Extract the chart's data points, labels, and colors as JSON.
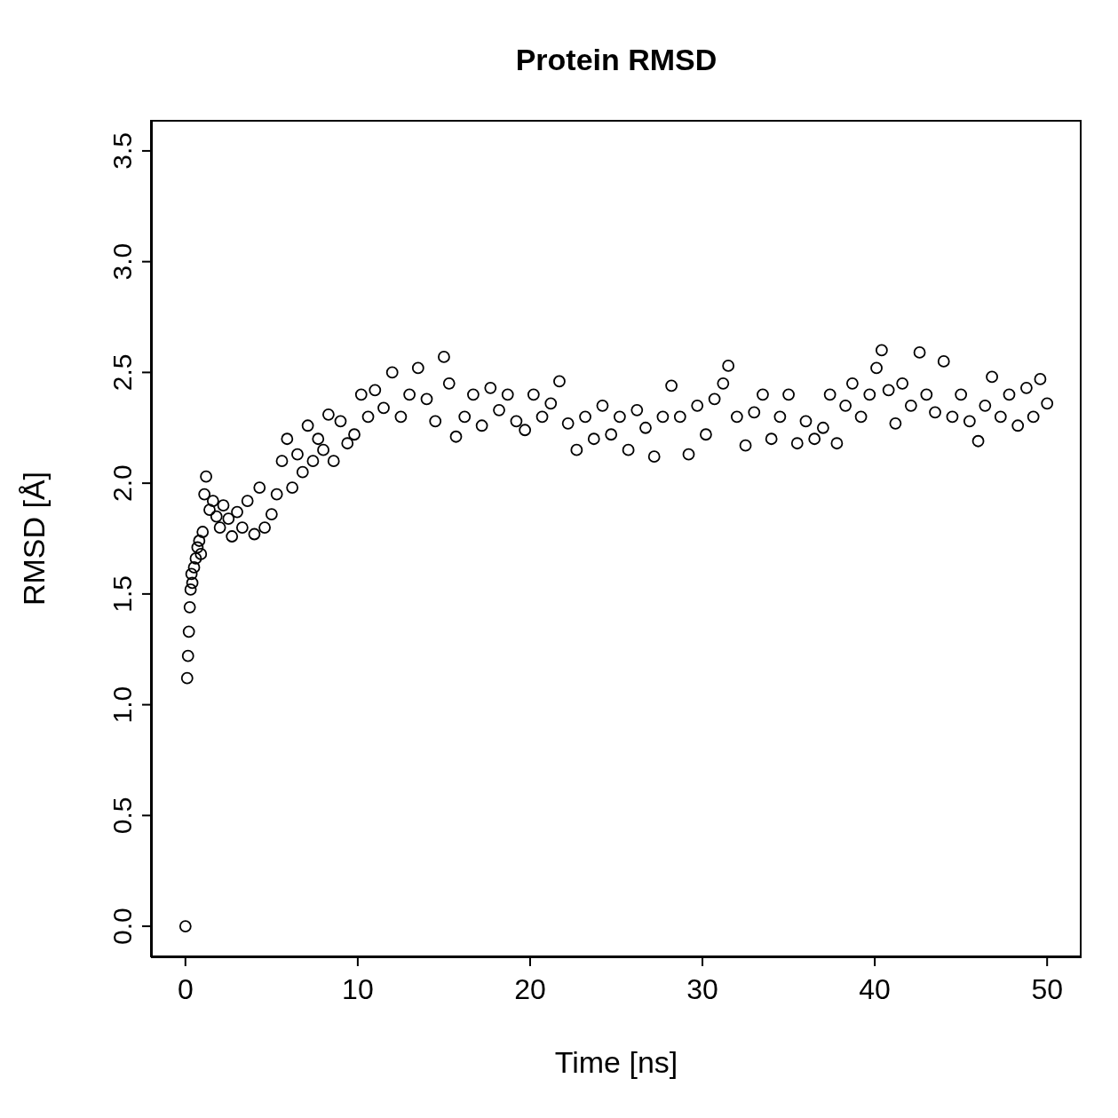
{
  "chart_data": {
    "type": "scatter",
    "title": "Protein RMSD",
    "xlabel": "Time [ns]",
    "ylabel": "RMSD [Å]",
    "marker": "circle",
    "grid": false,
    "legend": false,
    "xlim": [
      -2,
      52
    ],
    "ylim": [
      -0.14,
      3.64
    ],
    "xticks": [
      0,
      10,
      20,
      30,
      40,
      50
    ],
    "yticks": [
      {
        "value": 0,
        "label": "0.0"
      },
      0.5,
      {
        "value": 1,
        "label": "1.0"
      },
      1.5,
      {
        "value": 2,
        "label": "2.0"
      },
      2.5,
      {
        "value": 3,
        "label": "3.0"
      },
      3.5
    ],
    "series": [
      {
        "color": "#000000",
        "x": [
          0,
          0.1,
          0.15,
          0.2,
          0.25,
          0.3,
          0.35,
          0.4,
          0.5,
          0.6,
          0.7,
          0.8,
          0.9,
          1.0,
          1.1,
          1.2,
          1.4,
          1.6,
          1.8,
          2.0,
          2.2,
          2.5,
          2.7,
          3.0,
          3.3,
          3.6,
          4.0,
          4.3,
          4.6,
          5.0,
          5.3,
          5.6,
          5.9,
          6.2,
          6.5,
          6.8,
          7.1,
          7.4,
          7.7,
          8.0,
          8.3,
          8.6,
          9.0,
          9.4,
          9.8,
          10.2,
          10.6,
          11.0,
          11.5,
          12.0,
          12.5,
          13.0,
          13.5,
          14.0,
          14.5,
          15.0,
          15.3,
          15.7,
          16.2,
          16.7,
          17.2,
          17.7,
          18.2,
          18.7,
          19.2,
          19.7,
          20.2,
          20.7,
          21.2,
          21.7,
          22.2,
          22.7,
          23.2,
          23.7,
          24.2,
          24.7,
          25.2,
          25.7,
          26.2,
          26.7,
          27.2,
          27.7,
          28.2,
          28.7,
          29.2,
          29.7,
          30.2,
          30.7,
          31.2,
          31.5,
          32.0,
          32.5,
          33.0,
          33.5,
          34.0,
          34.5,
          35.0,
          35.5,
          36.0,
          36.5,
          37.0,
          37.4,
          37.8,
          38.3,
          38.7,
          39.2,
          39.7,
          40.1,
          40.4,
          40.8,
          41.2,
          41.6,
          42.1,
          42.6,
          43.0,
          43.5,
          44.0,
          44.5,
          45.0,
          45.5,
          46.0,
          46.4,
          46.8,
          47.3,
          47.8,
          48.3,
          48.8,
          49.2,
          49.6,
          50.0
        ],
        "values": [
          0,
          1.12,
          1.22,
          1.33,
          1.44,
          1.52,
          1.59,
          1.55,
          1.62,
          1.66,
          1.71,
          1.74,
          1.68,
          1.78,
          1.95,
          2.03,
          1.88,
          1.92,
          1.85,
          1.8,
          1.9,
          1.84,
          1.76,
          1.87,
          1.8,
          1.92,
          1.77,
          1.98,
          1.8,
          1.86,
          1.95,
          2.1,
          2.2,
          1.98,
          2.13,
          2.05,
          2.26,
          2.1,
          2.2,
          2.15,
          2.31,
          2.1,
          2.28,
          2.18,
          2.22,
          2.4,
          2.3,
          2.42,
          2.34,
          2.5,
          2.3,
          2.4,
          2.52,
          2.38,
          2.28,
          2.57,
          2.45,
          2.21,
          2.3,
          2.4,
          2.26,
          2.43,
          2.33,
          2.4,
          2.28,
          2.24,
          2.4,
          2.3,
          2.36,
          2.46,
          2.27,
          2.15,
          2.3,
          2.2,
          2.35,
          2.22,
          2.3,
          2.15,
          2.33,
          2.25,
          2.12,
          2.3,
          2.44,
          2.3,
          2.13,
          2.35,
          2.22,
          2.38,
          2.45,
          2.53,
          2.3,
          2.17,
          2.32,
          2.4,
          2.2,
          2.3,
          2.4,
          2.18,
          2.28,
          2.2,
          2.25,
          2.4,
          2.18,
          2.35,
          2.45,
          2.3,
          2.4,
          2.52,
          2.6,
          2.42,
          2.27,
          2.45,
          2.35,
          2.59,
          2.4,
          2.32,
          2.55,
          2.3,
          2.4,
          2.28,
          2.19,
          2.35,
          2.48,
          2.3,
          2.4,
          2.26,
          2.43,
          2.3,
          2.47,
          2.36
        ]
      }
    ]
  }
}
